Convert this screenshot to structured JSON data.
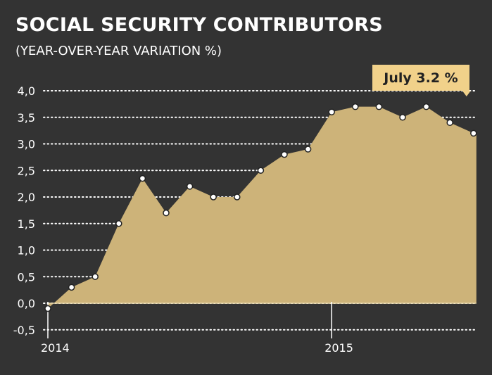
{
  "colors": {
    "background": "#333333",
    "area_fill": "#cdb379",
    "point_fill": "#ffffff",
    "point_stroke": "#222222",
    "grid": "#ffffff",
    "callout_bg": "#f1d18a",
    "callout_text": "#222222"
  },
  "chart_data": {
    "type": "area",
    "title": "SOCIAL SECURITY CONTRIBUTORS",
    "subtitle": "(YEAR-OVER-YEAR VARIATION %)",
    "xlabel": "",
    "ylabel": "",
    "ylim": [
      -0.5,
      4.0
    ],
    "y_ticks": [
      "-0,5",
      "0,0",
      "0,5",
      "1,0",
      "1,5",
      "2,0",
      "2,5",
      "3,0",
      "3,5",
      "4,0"
    ],
    "y_tick_values": [
      -0.5,
      0.0,
      0.5,
      1.0,
      1.5,
      2.0,
      2.5,
      3.0,
      3.5,
      4.0
    ],
    "grid": "horizontal dotted",
    "x_ticks": [
      {
        "label": "2014",
        "index": 0
      },
      {
        "label": "2015",
        "index": 12
      }
    ],
    "x": [
      "2014-01",
      "2014-02",
      "2014-03",
      "2014-04",
      "2014-05",
      "2014-06",
      "2014-07",
      "2014-08",
      "2014-09",
      "2014-10",
      "2014-11",
      "2014-12",
      "2015-01",
      "2015-02",
      "2015-03",
      "2015-04",
      "2015-05",
      "2015-06",
      "2015-07"
    ],
    "values": [
      -0.1,
      0.3,
      0.5,
      1.5,
      2.35,
      1.7,
      2.2,
      2.0,
      2.0,
      2.5,
      2.8,
      2.9,
      3.6,
      3.7,
      3.7,
      3.5,
      3.7,
      3.4,
      3.2
    ],
    "annotation": {
      "label": "July 3.2 %",
      "index": 18
    }
  }
}
